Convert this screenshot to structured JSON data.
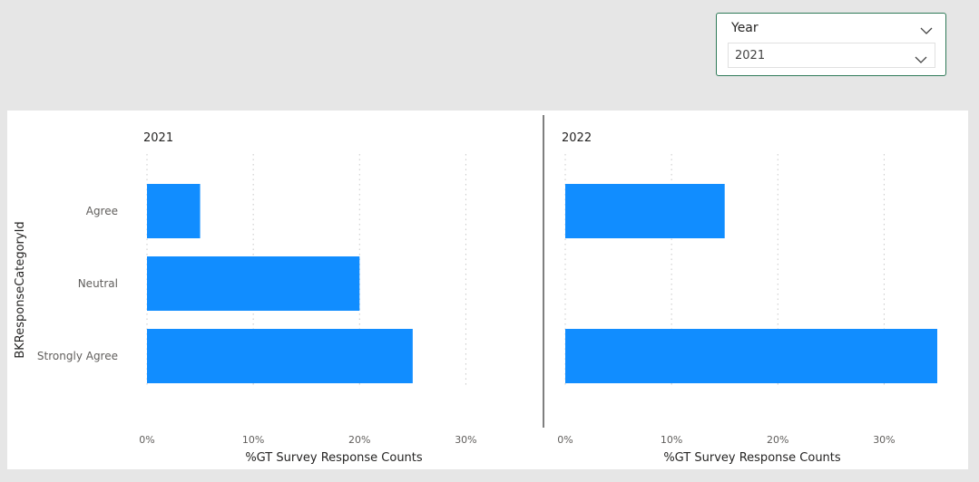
{
  "slicer": {
    "title": "Year",
    "selected": "2021"
  },
  "colors": {
    "bar": "#118dff",
    "accent": "#2f7a58"
  },
  "chart_data": {
    "type": "bar",
    "orientation": "horizontal",
    "ylabel": "BKResponseCategoryId",
    "xlabel": "%GT Survey Response Counts",
    "categories": [
      "Agree",
      "Neutral",
      "Strongly Agree"
    ],
    "xlim": [
      0,
      35
    ],
    "ticks": [
      "0%",
      "10%",
      "20%",
      "30%"
    ],
    "panels": [
      {
        "title": "2021",
        "values": [
          5,
          20,
          25
        ]
      },
      {
        "title": "2022",
        "values": [
          15,
          0,
          35
        ]
      }
    ]
  }
}
